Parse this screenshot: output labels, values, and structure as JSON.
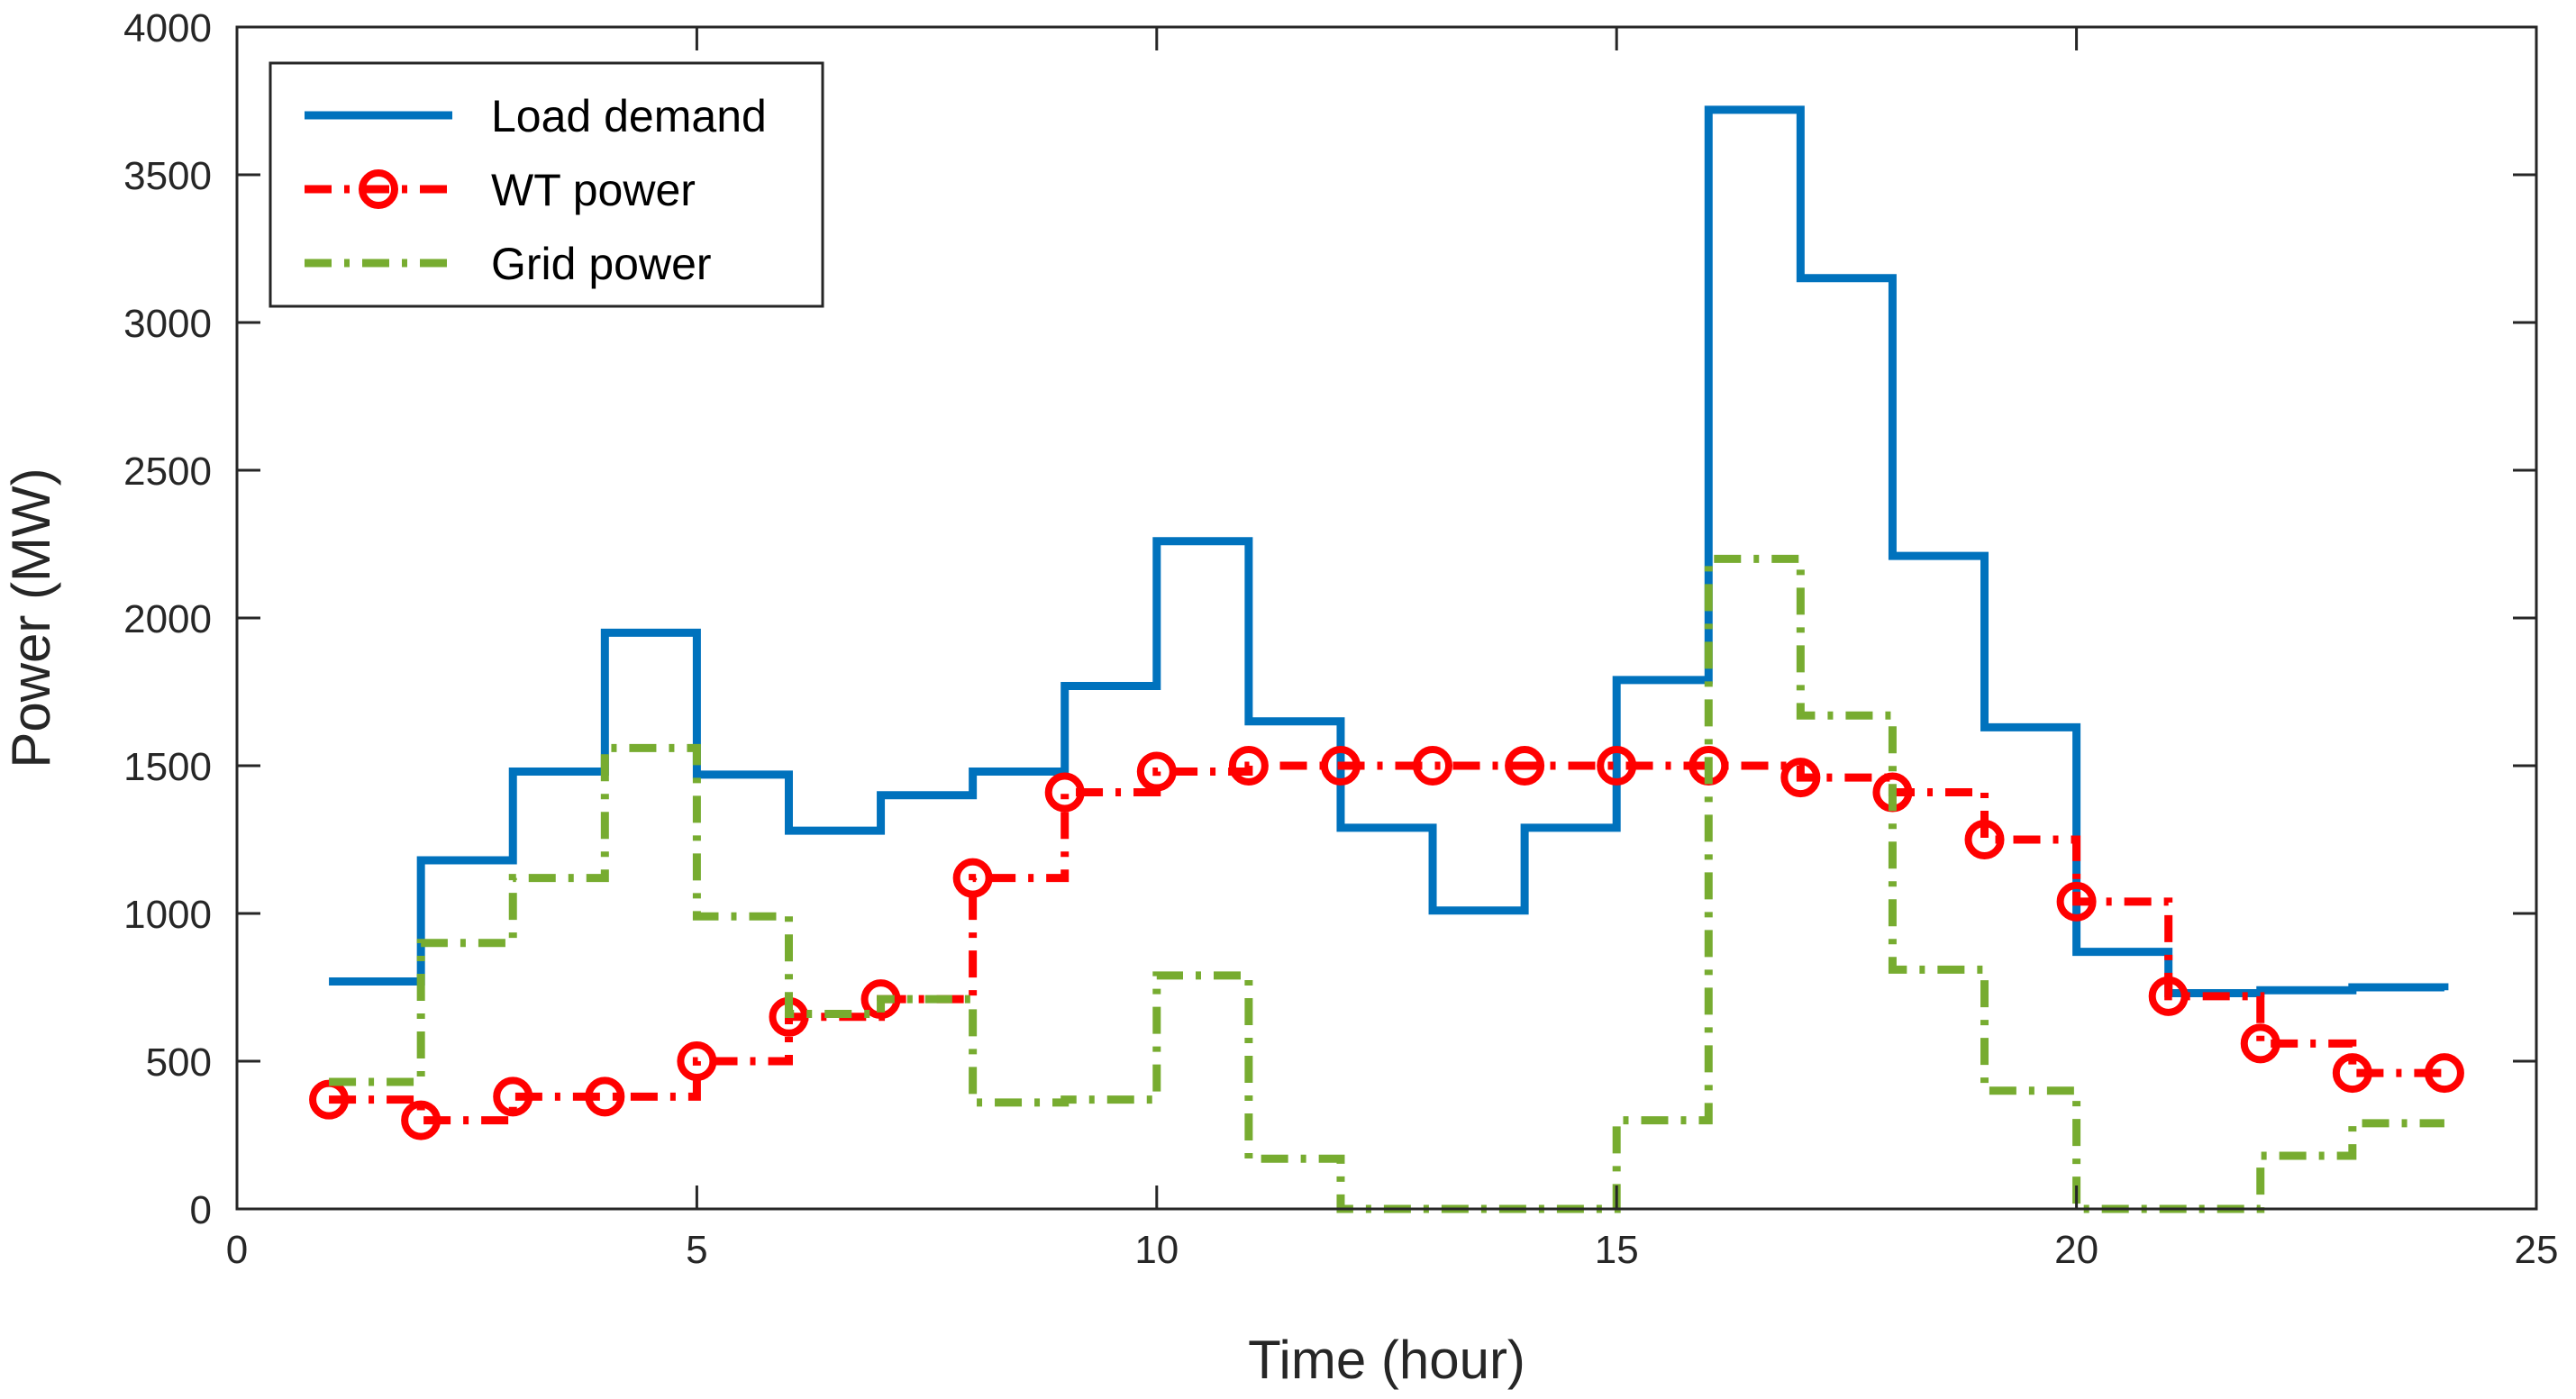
{
  "chart_data": {
    "type": "line",
    "step": "post",
    "title": "",
    "xlabel": "Time (hour)",
    "ylabel": "Power (MW)",
    "xlim": [
      0,
      25
    ],
    "ylim": [
      0,
      4000
    ],
    "xticks": [
      0,
      5,
      10,
      15,
      20,
      25
    ],
    "yticks": [
      0,
      500,
      1000,
      1500,
      2000,
      2500,
      3000,
      3500,
      4000
    ],
    "grid": false,
    "legend_position": "top-left",
    "x": [
      1,
      2,
      3,
      4,
      5,
      6,
      7,
      8,
      9,
      10,
      11,
      12,
      13,
      14,
      15,
      16,
      17,
      18,
      19,
      20,
      21,
      22,
      23,
      24
    ],
    "series": [
      {
        "name": "Load demand",
        "color": "#0072BD",
        "style": "solid",
        "marker": "none",
        "values": [
          770,
          1180,
          1480,
          1950,
          1470,
          1280,
          1400,
          1480,
          1770,
          2260,
          1650,
          1290,
          1010,
          1290,
          1790,
          3720,
          3150,
          2210,
          1630,
          870,
          730,
          740,
          750,
          740
        ]
      },
      {
        "name": "WT power",
        "color": "#FF0000",
        "style": "dashdot",
        "marker": "circle",
        "values": [
          370,
          300,
          380,
          380,
          500,
          650,
          710,
          1120,
          1410,
          1480,
          1500,
          1500,
          1500,
          1500,
          1500,
          1500,
          1460,
          1410,
          1250,
          1040,
          720,
          560,
          460,
          460
        ]
      },
      {
        "name": "Grid power",
        "color": "#77AC30",
        "style": "dashdot",
        "marker": "none",
        "values": [
          430,
          900,
          1120,
          1560,
          990,
          660,
          710,
          360,
          370,
          790,
          170,
          0,
          0,
          0,
          300,
          2200,
          1670,
          810,
          400,
          0,
          0,
          180,
          290,
          290
        ]
      }
    ]
  }
}
